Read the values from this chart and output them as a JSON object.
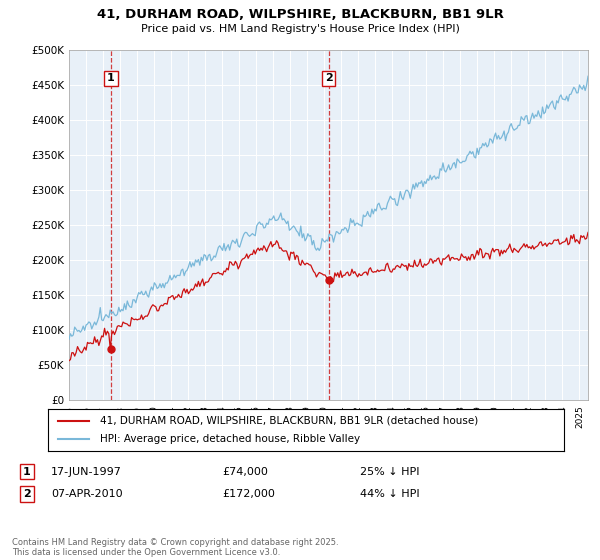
{
  "title_line1": "41, DURHAM ROAD, WILPSHIRE, BLACKBURN, BB1 9LR",
  "title_line2": "Price paid vs. HM Land Registry's House Price Index (HPI)",
  "ylim": [
    0,
    500000
  ],
  "yticks": [
    0,
    50000,
    100000,
    150000,
    200000,
    250000,
    300000,
    350000,
    400000,
    450000,
    500000
  ],
  "ytick_labels": [
    "£0",
    "£50K",
    "£100K",
    "£150K",
    "£200K",
    "£250K",
    "£300K",
    "£350K",
    "£400K",
    "£450K",
    "£500K"
  ],
  "hpi_color": "#7ab8d9",
  "price_color": "#cc1111",
  "vline_color": "#cc1111",
  "background_color": "#ffffff",
  "plot_bg_color": "#e8f0f8",
  "grid_color": "#ffffff",
  "sale1_date_decimal": 1997.46,
  "sale1_price": 74000,
  "sale2_date_decimal": 2010.27,
  "sale2_price": 172000,
  "legend_label_price": "41, DURHAM ROAD, WILPSHIRE, BLACKBURN, BB1 9LR (detached house)",
  "legend_label_hpi": "HPI: Average price, detached house, Ribble Valley",
  "annotation1_date": "17-JUN-1997",
  "annotation1_price": "£74,000",
  "annotation1_discount": "25% ↓ HPI",
  "annotation2_date": "07-APR-2010",
  "annotation2_price": "£172,000",
  "annotation2_discount": "44% ↓ HPI",
  "footer": "Contains HM Land Registry data © Crown copyright and database right 2025.\nThis data is licensed under the Open Government Licence v3.0.",
  "xlim_start": 1995.0,
  "xlim_end": 2025.5
}
